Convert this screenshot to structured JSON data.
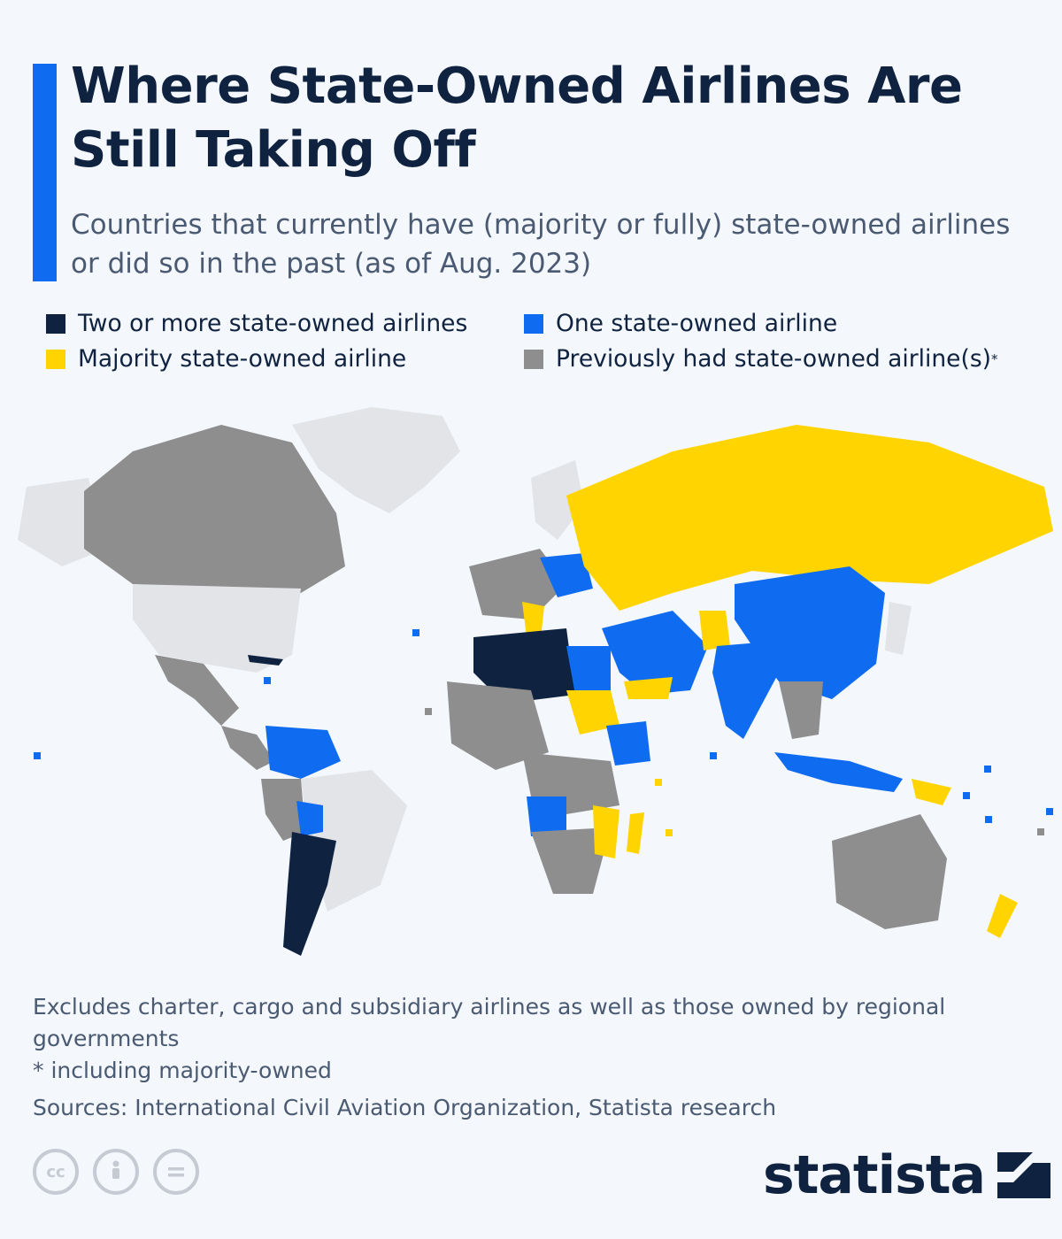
{
  "title": "Where State-Owned Airlines Are Still Taking Off",
  "subtitle": "Countries that currently have (majority or fully) state-owned airlines or did so in the past (as of Aug. 2023)",
  "colors": {
    "two_or_more": "#0f2340",
    "one": "#0f6cf0",
    "majority": "#ffd400",
    "previously": "#8e8e8e",
    "none": "#e2e4e7",
    "accent": "#0f6cf0"
  },
  "legend": [
    {
      "label": "Two or more state-owned airlines",
      "color": "#0f2340"
    },
    {
      "label": "One state-owned airline",
      "color": "#0f6cf0"
    },
    {
      "label": "Majority state-owned airline",
      "color": "#ffd400"
    },
    {
      "label": "Previously had state-owned airline(s)",
      "color": "#8e8e8e",
      "marker": "*"
    }
  ],
  "notes": {
    "exclusions": "Excludes charter, cargo and subsidiary airlines as well as those owned by regional governments",
    "asterisk": "* including majority-owned",
    "sources": "Sources: International Civil Aviation Organization, Statista research"
  },
  "icons": [
    "cc-icon",
    "attribution-icon",
    "no-derivatives-icon"
  ],
  "brand": "statista"
}
